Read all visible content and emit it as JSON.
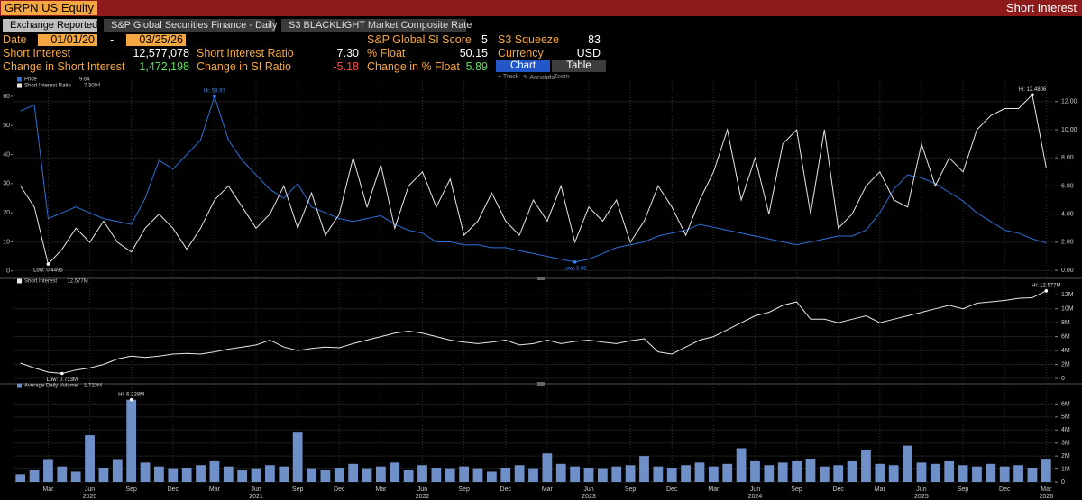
{
  "header": {
    "ticker": "GRPN US Equity",
    "function": "Short Interest"
  },
  "tabs": [
    "Exchange Reported",
    "S&P Global Securities Finance - Daily",
    "S3 BLACKLIGHT Market Composite Rate"
  ],
  "date": {
    "label": "Date",
    "start": "01/01/20",
    "separator": "-",
    "end": "03/25/26"
  },
  "fields": [
    [
      {
        "label": "S&P Global SI Score",
        "value": "5"
      },
      {
        "label": "S3 Squeeze",
        "value": "83"
      }
    ],
    [
      {
        "label": "Short Interest",
        "value": "12,577,078"
      },
      {
        "label": "Short Interest Ratio",
        "value": "7.30"
      },
      {
        "label": "% Float",
        "value": "50.15"
      },
      {
        "label": "Currency",
        "value": "USD"
      }
    ],
    [
      {
        "label": "Change in Short Interest",
        "value": "1,472,198",
        "color": "#5fdc5f"
      },
      {
        "label": "Change in SI Ratio",
        "value": "-5.18",
        "color": "#ff4a4a"
      },
      {
        "label": "Change in % Float",
        "value": "5.89",
        "color": "#5fdc5f"
      }
    ]
  ],
  "view_buttons": [
    "Chart",
    "Table"
  ],
  "toolbar": [
    "+ Track",
    "✎ Annotate",
    "⌕ Zoom"
  ],
  "chart_data": [
    {
      "type": "line",
      "ylim": [
        -1,
        64
      ],
      "yticks": [
        0,
        10,
        20,
        30,
        40,
        50,
        60
      ],
      "y2lim": [
        -0.25,
        13.2
      ],
      "y2ticks": [
        {
          "value": 0,
          "label": "0.00"
        },
        {
          "value": 2,
          "label": "2.00"
        },
        {
          "value": 4,
          "label": "4.00"
        },
        {
          "value": 6,
          "label": "6.00"
        },
        {
          "value": 8,
          "label": "8.00"
        },
        {
          "value": 10,
          "label": "10.00"
        },
        {
          "value": 12,
          "label": "12.00"
        }
      ],
      "grid": true,
      "series": [
        {
          "name": "Price",
          "legend_value": "9.64",
          "color": "#2f6fd6",
          "axis": "y",
          "hi_label": "Hi: 59.97",
          "lo_label": "Low: 3.08",
          "values": [
            55,
            57,
            18,
            20,
            22,
            20,
            18,
            17,
            16,
            25,
            38,
            35,
            40,
            45,
            59.97,
            45,
            38,
            33,
            28,
            25,
            30,
            22,
            20,
            18,
            17,
            18,
            19,
            16,
            14,
            13,
            10,
            10,
            9,
            9,
            8,
            8,
            7,
            6,
            5,
            4,
            3.08,
            4,
            6,
            8,
            9,
            10,
            12,
            13,
            14,
            16,
            15,
            14,
            13,
            12,
            11,
            10,
            9,
            10,
            11,
            12,
            12,
            14,
            20,
            28,
            33,
            32,
            30,
            27,
            24,
            20,
            17,
            14,
            13,
            11,
            9.64
          ]
        },
        {
          "name": "Short Interest Ratio",
          "legend_value": "7.3004",
          "color": "#e8e8e8",
          "axis": "y2",
          "hi_label": "Hi: 12.4806",
          "lo_label": "Low: 0.4495",
          "values": [
            6,
            4.5,
            0.4495,
            1.5,
            3,
            2,
            3.5,
            2,
            1.3,
            3,
            4,
            3,
            1.5,
            3,
            5,
            6,
            4.5,
            3,
            4,
            6,
            3,
            5.5,
            2.5,
            4,
            8,
            4.5,
            7.5,
            3,
            6,
            7,
            4.5,
            6.5,
            2.5,
            3.5,
            5.5,
            3.5,
            2.5,
            5,
            3.5,
            6,
            2,
            4.5,
            3.5,
            5,
            2,
            3.5,
            6,
            4.5,
            2.5,
            5,
            7,
            10,
            5,
            8,
            4,
            9,
            10,
            4,
            10,
            3,
            4,
            6,
            7,
            5,
            4.5,
            9,
            6,
            8,
            7,
            10,
            11,
            11.5,
            11.5,
            12.4806,
            7.3004
          ]
        }
      ]
    },
    {
      "type": "line",
      "ylim": [
        0,
        13.2
      ],
      "yticks": [
        0,
        {
          "value": 2,
          "label": "2M"
        },
        {
          "value": 4,
          "label": "4M"
        },
        {
          "value": 6,
          "label": "6M"
        },
        {
          "value": 8,
          "label": "8M"
        },
        {
          "value": 10,
          "label": "10M"
        },
        {
          "value": 12,
          "label": "12M"
        }
      ],
      "grid": true,
      "series": [
        {
          "name": "Short Interest",
          "legend_value": "12.577M",
          "color": "#e8e8e8",
          "hi_label": "Hi: 12.577M",
          "lo_label": "Low: 0.713M",
          "values": [
            2.2,
            1.5,
            0.9,
            0.713,
            1.2,
            1.5,
            2,
            2.8,
            3.2,
            3,
            3.2,
            3.5,
            3.6,
            3.5,
            3.8,
            4.2,
            4.5,
            4.8,
            5.5,
            4.5,
            4,
            4.3,
            4.5,
            4.4,
            5,
            5.5,
            6,
            6.5,
            6.8,
            6.5,
            6,
            5.5,
            5.2,
            5,
            5.2,
            5.5,
            4.8,
            5,
            5.5,
            5,
            5.3,
            5.5,
            5.2,
            5,
            5.4,
            5.7,
            3.8,
            3.5,
            4.5,
            5.5,
            6,
            7,
            8,
            9,
            9.5,
            10.5,
            11,
            8.5,
            8.5,
            8,
            8.5,
            9,
            8,
            8.5,
            9,
            9.5,
            10,
            10.5,
            10,
            10.8,
            11,
            11.2,
            11.5,
            11.6,
            12.577
          ]
        }
      ]
    },
    {
      "type": "bar",
      "ylim": [
        0,
        7
      ],
      "yticks": [
        0,
        {
          "value": 1,
          "label": "1M"
        },
        {
          "value": 2,
          "label": "2M"
        },
        {
          "value": 3,
          "label": "3M"
        },
        {
          "value": 4,
          "label": "4M"
        },
        {
          "value": 5,
          "label": "5M"
        },
        {
          "value": 6,
          "label": "6M"
        }
      ],
      "grid": true,
      "categories": [
        null,
        null,
        "Mar",
        null,
        null,
        "Jun",
        null,
        null,
        "Sep",
        null,
        null,
        "Dec",
        null,
        null,
        "Mar",
        null,
        null,
        "Jun",
        null,
        null,
        "Sep",
        null,
        null,
        "Dec",
        null,
        null,
        "Mar",
        null,
        null,
        "Jun",
        null,
        null,
        "Sep",
        null,
        null,
        "Dec",
        null,
        null,
        "Mar",
        null,
        null,
        "Jun",
        null,
        null,
        "Sep",
        null,
        null,
        "Dec",
        null,
        null,
        "Mar",
        null,
        null,
        "Jun",
        null,
        null,
        "Sep",
        null,
        null,
        "Dec",
        null,
        null,
        "Mar",
        null,
        null,
        "Jun",
        null,
        null,
        "Sep",
        null,
        null,
        "Dec",
        null,
        null,
        "Mar"
      ],
      "years": [
        "2020",
        "2021",
        "2022",
        "2023",
        "2024",
        "2025",
        "2026"
      ],
      "series": [
        {
          "name": "Average Daily Volume",
          "legend_value": "1.723M",
          "color": "#6f8fc8",
          "hi_label": "Hi: 6.328M",
          "values": [
            0.6,
            0.9,
            1.7,
            1.2,
            0.8,
            3.6,
            1.1,
            1.7,
            6.328,
            1.5,
            1.2,
            1.0,
            1.1,
            1.3,
            1.6,
            1.2,
            0.9,
            1.0,
            1.3,
            1.2,
            3.8,
            1.0,
            0.9,
            1.1,
            1.4,
            1.0,
            1.2,
            1.5,
            0.9,
            1.3,
            1.1,
            1.0,
            1.2,
            1.0,
            0.8,
            1.1,
            1.3,
            1.0,
            2.2,
            1.4,
            1.2,
            1.1,
            1.0,
            1.2,
            1.3,
            2.0,
            1.2,
            1.1,
            1.3,
            1.5,
            1.2,
            1.4,
            2.6,
            1.6,
            1.3,
            1.5,
            1.6,
            1.8,
            1.2,
            1.3,
            1.6,
            2.5,
            1.4,
            1.3,
            2.8,
            1.5,
            1.4,
            1.6,
            1.3,
            1.2,
            1.4,
            1.2,
            1.3,
            1.1,
            1.723
          ]
        }
      ]
    }
  ]
}
